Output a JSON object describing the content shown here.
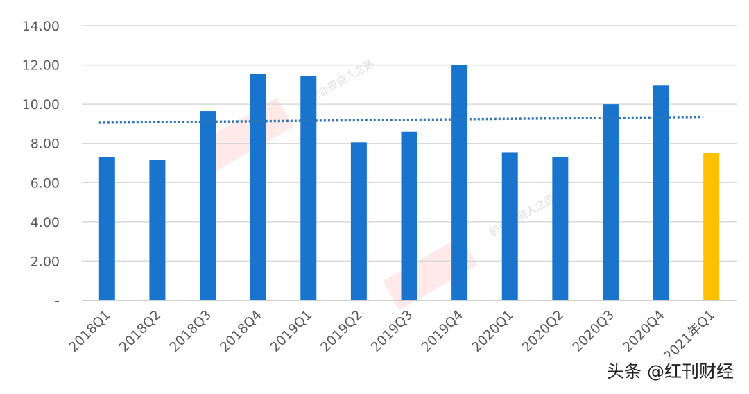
{
  "chart_data": {
    "type": "bar",
    "categories": [
      "2018Q1",
      "2018Q2",
      "2018Q3",
      "2018Q4",
      "2019Q1",
      "2019Q2",
      "2019Q3",
      "2019Q4",
      "2020Q1",
      "2020Q2",
      "2020Q3",
      "2020Q4",
      "2021年Q1"
    ],
    "values": [
      7.3,
      7.15,
      9.65,
      11.55,
      11.45,
      8.05,
      8.6,
      12.0,
      7.55,
      7.3,
      10.0,
      10.95,
      7.5
    ],
    "bar_colors": [
      "#1874CD",
      "#1874CD",
      "#1874CD",
      "#1874CD",
      "#1874CD",
      "#1874CD",
      "#1874CD",
      "#1874CD",
      "#1874CD",
      "#1874CD",
      "#1874CD",
      "#1874CD",
      "#FFC000"
    ],
    "trendline": {
      "style": "dotted",
      "color": "#2E75B6",
      "start": 9.05,
      "end": 9.35
    },
    "ylim": [
      0,
      14
    ],
    "yticks": [
      0,
      2,
      4,
      6,
      8,
      10,
      12,
      14
    ],
    "ytick_labels": [
      "-",
      "2.00",
      "4.00",
      "6.00",
      "8.00",
      "10.00",
      "12.00",
      "14.00"
    ],
    "grid": true,
    "legend": "none"
  },
  "watermark": {
    "text_1": "职业投资人之选",
    "text_2": "职业投资人之选"
  },
  "credit": "头条 @红刊财经"
}
